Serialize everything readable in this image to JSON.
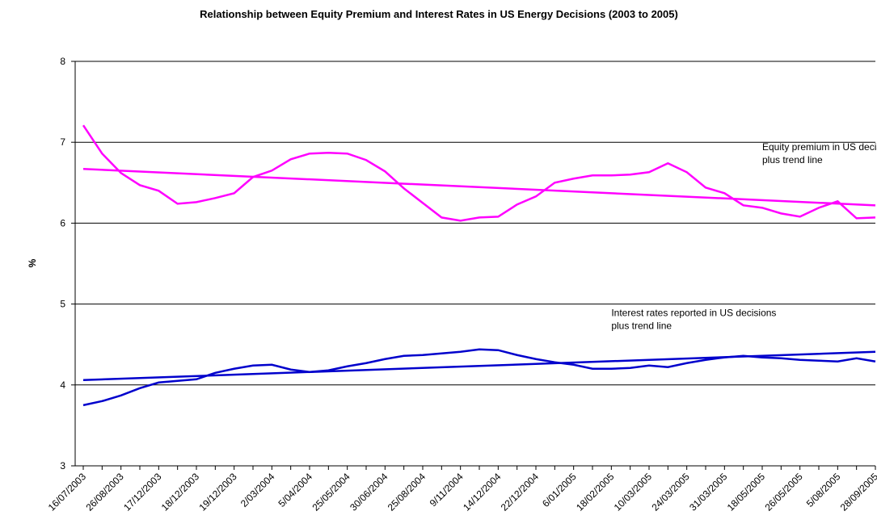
{
  "chart_data": {
    "type": "line",
    "title": "Relationship between Equity Premium and Interest Rates in US Energy Decisions (2003 to 2005)",
    "ylabel": "%",
    "categories": [
      "16/07/2003",
      null,
      "26/08/2003",
      null,
      "17/12/2003",
      null,
      "18/12/2003",
      null,
      "19/12/2003",
      null,
      "2/03/2004",
      null,
      "5/04/2004",
      null,
      "25/05/2004",
      null,
      "30/06/2004",
      null,
      "25/08/2004",
      null,
      "9/11/2004",
      null,
      "14/12/2004",
      null,
      "22/12/2004",
      null,
      "6/01/2005",
      null,
      "18/02/2005",
      null,
      "10/03/2005",
      null,
      "24/03/2005",
      null,
      "31/03/2005",
      null,
      "18/05/2005",
      null,
      "26/05/2005",
      null,
      "5/08/2005",
      null,
      "28/09/2005"
    ],
    "series": [
      {
        "color": "#ff00ff",
        "values": [
          7.21,
          6.86,
          6.62,
          6.47,
          6.4,
          6.24,
          6.26,
          6.31,
          6.37,
          6.57,
          6.65,
          6.79,
          6.86,
          6.87,
          6.86,
          6.78,
          6.64,
          6.43,
          6.25,
          6.07,
          6.03,
          6.07,
          6.08,
          6.23,
          6.33,
          6.5,
          6.55,
          6.59,
          6.59,
          6.6,
          6.63,
          6.74,
          6.63,
          6.44,
          6.37,
          6.22,
          6.19,
          6.12,
          6.08,
          6.19,
          6.27,
          6.06,
          6.07
        ]
      },
      {
        "color": "#0000cc",
        "values": [
          3.75,
          3.8,
          3.87,
          3.96,
          4.03,
          4.05,
          4.07,
          4.15,
          4.2,
          4.24,
          4.25,
          4.19,
          4.16,
          4.18,
          4.23,
          4.27,
          4.32,
          4.36,
          4.37,
          4.39,
          4.41,
          4.44,
          4.43,
          4.37,
          4.32,
          4.28,
          4.25,
          4.2,
          4.2,
          4.21,
          4.24,
          4.22,
          4.27,
          4.31,
          4.34,
          4.36,
          4.34,
          4.33,
          4.31,
          4.3,
          4.29,
          4.33,
          4.29
        ]
      }
    ],
    "trendlines": [
      {
        "color": "#ff00ff",
        "values": [
          6.67,
          6.22
        ]
      },
      {
        "color": "#0000cc",
        "values": [
          4.06,
          4.41
        ]
      }
    ],
    "annotations": [
      {
        "lines": [
          "Equity premium in US decisions",
          "plus trend line"
        ],
        "x": 36,
        "y": 6.9
      },
      {
        "lines": [
          "Interest rates reported in US decisions",
          "plus trend line"
        ],
        "x": 28,
        "y": 4.85
      }
    ],
    "ylim": [
      3,
      8
    ],
    "yticks": [
      3,
      4,
      5,
      6,
      7,
      8
    ],
    "grid": true
  }
}
